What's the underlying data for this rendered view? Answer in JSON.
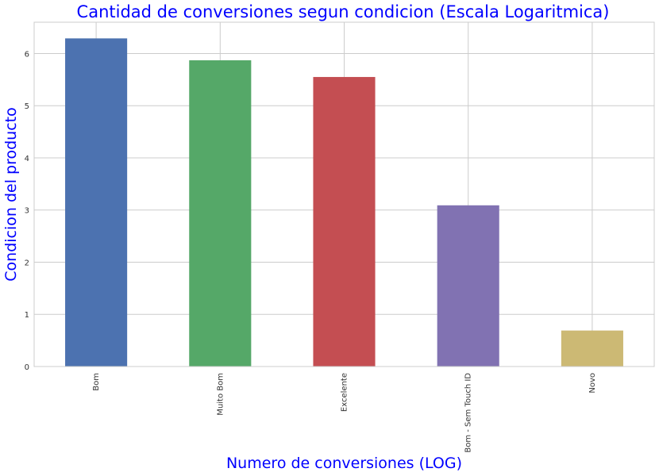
{
  "chart_data": {
    "type": "bar",
    "title": "Cantidad de conversiones segun condicion (Escala Logaritmica)",
    "xlabel": "Numero de conversiones (LOG)",
    "ylabel": "Condicion del producto",
    "categories": [
      "Bom",
      "Muito Bom",
      "Excelente",
      "Bom - Sem Touch ID",
      "Novo"
    ],
    "values": [
      6.29,
      5.87,
      5.55,
      3.09,
      0.69
    ],
    "colors": [
      "#4c72b0",
      "#55a868",
      "#c44e52",
      "#8172b2",
      "#ccb974"
    ],
    "ylim": [
      0,
      6.6
    ],
    "yticks": [
      0,
      1,
      2,
      3,
      4,
      5,
      6
    ],
    "grid": true,
    "title_color": "#0000ff",
    "label_color": "#0000ff"
  }
}
